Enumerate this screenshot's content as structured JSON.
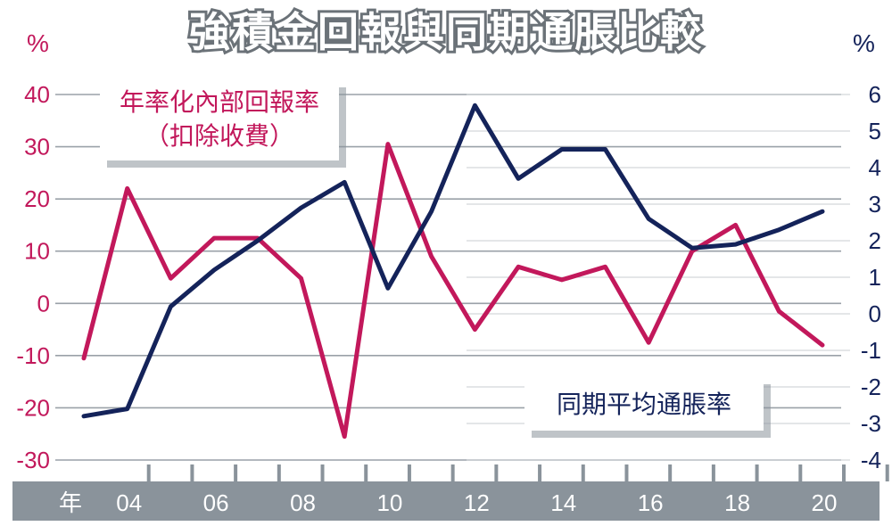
{
  "title": "強積金回報與同期通脹比較",
  "chart_data": {
    "type": "line",
    "title": "強積金回報與同期通脹比較",
    "xlabel": "年",
    "x": [
      2003,
      2004,
      2005,
      2006,
      2007,
      2008,
      2009,
      2010,
      2011,
      2012,
      2013,
      2014,
      2015,
      2016,
      2017,
      2018,
      2019,
      2020
    ],
    "x_tick_labels": [
      "04",
      "06",
      "08",
      "10",
      "12",
      "14",
      "16",
      "18",
      "20"
    ],
    "x_tick_years": [
      2004,
      2006,
      2008,
      2010,
      2012,
      2014,
      2016,
      2018,
      2020
    ],
    "left_axis": {
      "unit": "%",
      "ylim": [
        -30,
        40
      ],
      "ticks": [
        40,
        30,
        20,
        10,
        0,
        -10,
        -20,
        -30
      ]
    },
    "right_axis": {
      "unit": "%",
      "ylim": [
        -4,
        6
      ],
      "ticks": [
        6,
        5,
        4,
        3,
        2,
        1,
        0,
        -1,
        -2,
        -3,
        -4
      ]
    },
    "grid": true,
    "series": [
      {
        "name": "年率化內部回報率（扣除收費）",
        "legend_lines": [
          "年率化內部回報率",
          "（扣除收費）"
        ],
        "axis": "left",
        "color": "#c2185b",
        "values": [
          -10.5,
          22.0,
          4.8,
          12.5,
          12.5,
          4.8,
          -25.5,
          30.5,
          9.0,
          -5.0,
          7.0,
          4.5,
          7.0,
          -7.5,
          10.0,
          15.0,
          -1.5,
          -8.0
        ]
      },
      {
        "name": "同期平均通脹率",
        "axis": "right",
        "color": "#14235a",
        "values": [
          -2.8,
          -2.6,
          0.2,
          1.2,
          2.0,
          2.9,
          3.6,
          0.7,
          2.8,
          5.7,
          3.7,
          4.5,
          4.5,
          2.6,
          1.8,
          1.9,
          2.3,
          2.8
        ]
      }
    ]
  }
}
